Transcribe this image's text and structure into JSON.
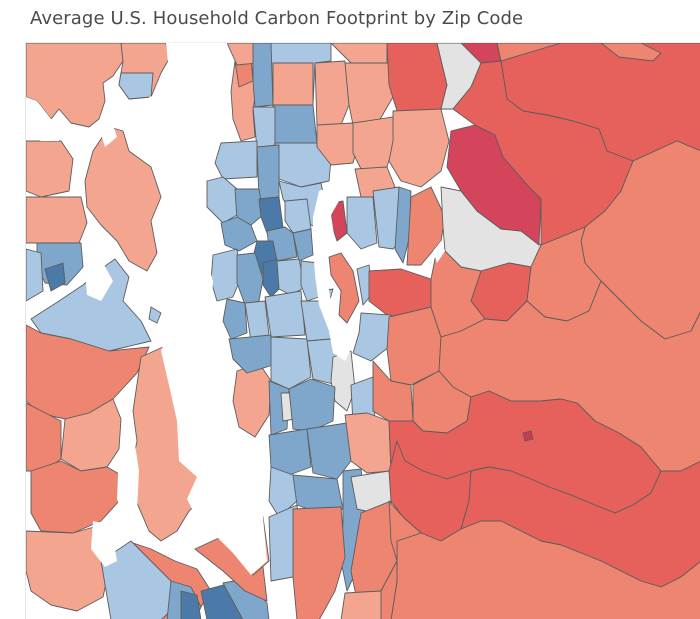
{
  "title": "Average U.S. Household Carbon Footprint by Zip Code",
  "map": {
    "kind": "choropleth",
    "region": "Seattle area, Puget Sound, WA",
    "palette": {
      "water": "#ffffff",
      "no_data": "#e3e3e3",
      "blue_dark": "#4b79a8",
      "blue_mid": "#7fa7cc",
      "blue_light": "#a9c6e2",
      "red_light": "#f3a590",
      "red_mid": "#ee8571",
      "red": "#e6605c",
      "red_dark": "#d4445a",
      "red_darkest": "#c73a52"
    }
  }
}
